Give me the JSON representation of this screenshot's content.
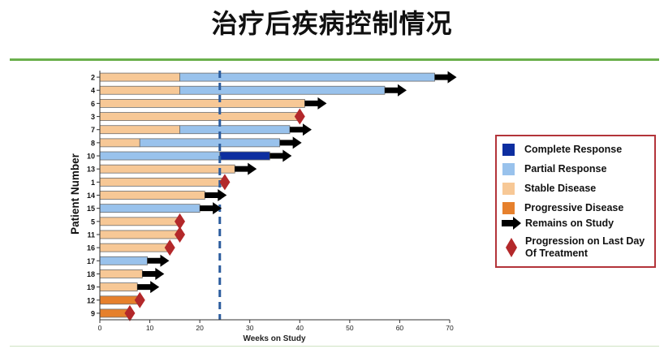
{
  "slide": {
    "title": "治疗后疾病控制情况"
  },
  "colors": {
    "complete_response": "#0d2ea0",
    "partial_response": "#99c2ec",
    "stable_disease": "#f7c896",
    "progressive_disease": "#e6802c",
    "arrow": "#000000",
    "progression_marker": "#b3282a",
    "threshold_line": "#2b5c9e"
  },
  "legend": {
    "complete_response": "Complete Response",
    "partial_response": "Partial Response",
    "stable_disease": "Stable Disease",
    "progressive_disease": "Progressive Disease",
    "remains_on_study": "Remains on Study",
    "progression_line1": "Progression on Last Day",
    "progression_line2": "Of Treatment"
  },
  "chart_data": {
    "type": "bar",
    "orientation": "horizontal",
    "subtype": "swimmer-plot",
    "xlabel": "Weeks on Study",
    "ylabel": "Patient Number",
    "xlim": [
      0,
      70
    ],
    "xticks": [
      0,
      10,
      20,
      30,
      40,
      50,
      60,
      70
    ],
    "reference_line_x": 24,
    "grid": false,
    "legend_position": "right",
    "patients": [
      {
        "id": "2",
        "segments": [
          {
            "status": "stable",
            "start": 0,
            "end": 16
          },
          {
            "status": "partial",
            "start": 16,
            "end": 67
          }
        ],
        "end_marker": "arrow"
      },
      {
        "id": "4",
        "segments": [
          {
            "status": "stable",
            "start": 0,
            "end": 16
          },
          {
            "status": "partial",
            "start": 16,
            "end": 57
          }
        ],
        "end_marker": "arrow"
      },
      {
        "id": "6",
        "segments": [
          {
            "status": "stable",
            "start": 0,
            "end": 41
          }
        ],
        "end_marker": "arrow"
      },
      {
        "id": "3",
        "segments": [
          {
            "status": "stable",
            "start": 0,
            "end": 40
          }
        ],
        "end_marker": "diamond"
      },
      {
        "id": "7",
        "segments": [
          {
            "status": "stable",
            "start": 0,
            "end": 16
          },
          {
            "status": "partial",
            "start": 16,
            "end": 38
          }
        ],
        "end_marker": "arrow"
      },
      {
        "id": "8",
        "segments": [
          {
            "status": "stable",
            "start": 0,
            "end": 8
          },
          {
            "status": "partial",
            "start": 8,
            "end": 36
          }
        ],
        "end_marker": "arrow"
      },
      {
        "id": "10",
        "segments": [
          {
            "status": "partial",
            "start": 0,
            "end": 24
          },
          {
            "status": "complete",
            "start": 24,
            "end": 34
          }
        ],
        "end_marker": "arrow"
      },
      {
        "id": "13",
        "segments": [
          {
            "status": "stable",
            "start": 0,
            "end": 27
          }
        ],
        "end_marker": "arrow"
      },
      {
        "id": "1",
        "segments": [
          {
            "status": "stable",
            "start": 0,
            "end": 25
          }
        ],
        "end_marker": "diamond"
      },
      {
        "id": "14",
        "segments": [
          {
            "status": "stable",
            "start": 0,
            "end": 21
          }
        ],
        "end_marker": "arrow"
      },
      {
        "id": "15",
        "segments": [
          {
            "status": "partial",
            "start": 0,
            "end": 20
          }
        ],
        "end_marker": "arrow"
      },
      {
        "id": "5",
        "segments": [
          {
            "status": "stable",
            "start": 0,
            "end": 16
          }
        ],
        "end_marker": "diamond"
      },
      {
        "id": "11",
        "segments": [
          {
            "status": "stable",
            "start": 0,
            "end": 16
          }
        ],
        "end_marker": "diamond"
      },
      {
        "id": "16",
        "segments": [
          {
            "status": "stable",
            "start": 0,
            "end": 14
          }
        ],
        "end_marker": "diamond"
      },
      {
        "id": "17",
        "segments": [
          {
            "status": "partial",
            "start": 0,
            "end": 9.5
          }
        ],
        "end_marker": "arrow"
      },
      {
        "id": "18",
        "segments": [
          {
            "status": "stable",
            "start": 0,
            "end": 8.5
          }
        ],
        "end_marker": "arrow"
      },
      {
        "id": "19",
        "segments": [
          {
            "status": "stable",
            "start": 0,
            "end": 7.5
          }
        ],
        "end_marker": "arrow"
      },
      {
        "id": "12",
        "segments": [
          {
            "status": "progressive",
            "start": 0,
            "end": 8
          }
        ],
        "end_marker": "diamond"
      },
      {
        "id": "9",
        "segments": [
          {
            "status": "progressive",
            "start": 0,
            "end": 6
          }
        ],
        "end_marker": "diamond"
      }
    ]
  }
}
